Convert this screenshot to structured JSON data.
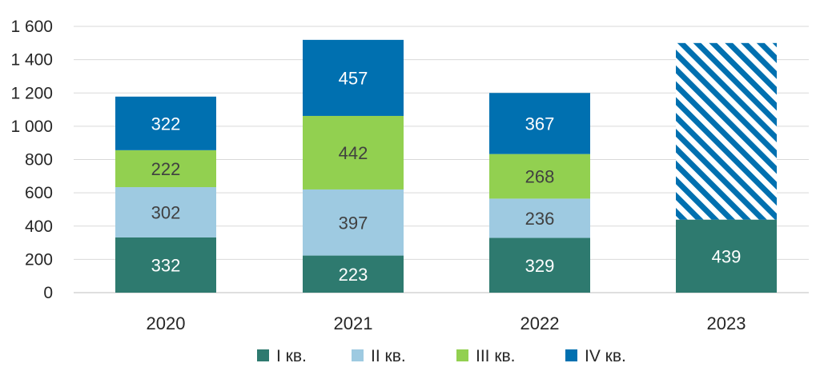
{
  "chart_data": {
    "type": "bar",
    "stacked": true,
    "categories": [
      "2020",
      "2021",
      "2022",
      "2023"
    ],
    "series": [
      {
        "name": "I кв.",
        "values": [
          332,
          223,
          329,
          439
        ],
        "color": "#2e7a6f",
        "label_color": "#ffffff"
      },
      {
        "name": "II кв.",
        "values": [
          302,
          397,
          236,
          null
        ],
        "color": "#9ecae1",
        "label_color": "#404040"
      },
      {
        "name": "III кв.",
        "values": [
          222,
          442,
          268,
          null
        ],
        "color": "#92d050",
        "label_color": "#404040"
      },
      {
        "name": "IV кв.",
        "values": [
          322,
          457,
          367,
          null
        ],
        "color": "#0070b0",
        "label_color": "#ffffff"
      }
    ],
    "hatched_remainder": {
      "category": "2023",
      "total": 1500,
      "color": "#0070b0"
    },
    "y_ticks": [
      "0",
      "200",
      "400",
      "600",
      "800",
      "1 000",
      "1 200",
      "1 400",
      "1 600"
    ],
    "ylim": [
      0,
      1600
    ],
    "grid": true,
    "legend_position": "bottom"
  }
}
